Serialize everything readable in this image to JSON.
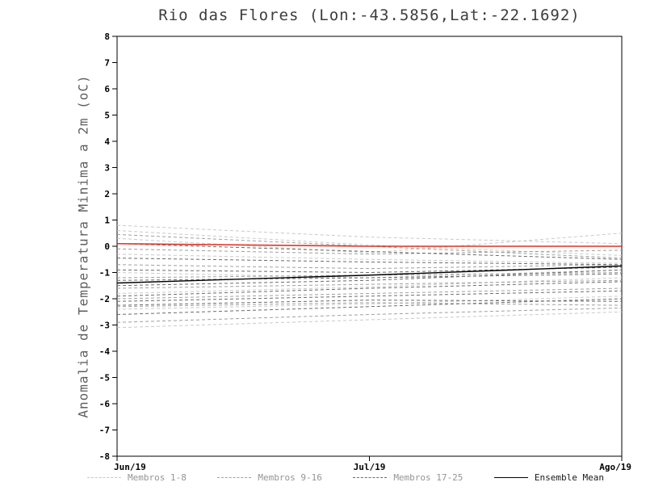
{
  "chart_data": {
    "type": "line",
    "title": "Rio das Flores (Lon:-43.5856,Lat:-22.1692)",
    "ylabel": "Anomalia de Temperatura Minima a 2m (oC)",
    "xlabel": "",
    "x_labels": [
      "Jun/19",
      "Jul/19",
      "Ago/19"
    ],
    "ylim": [
      -8,
      8
    ],
    "ytick_step": 1,
    "grid": false,
    "legend_position": "bottom",
    "colors": {
      "members_1_8": "#c9c9c9",
      "members_9_16": "#9f9f9f",
      "members_17_25": "#6b6b6b",
      "ensemble_mean": "#000000",
      "reference_zero": "#e03226"
    },
    "legend": [
      {
        "label": "Membros 1-8",
        "style": "dashed",
        "color_key": "members_1_8"
      },
      {
        "label": "Membros 9-16",
        "style": "dashed",
        "color_key": "members_9_16"
      },
      {
        "label": "Membros 17-25",
        "style": "dashed",
        "color_key": "members_17_25"
      },
      {
        "label": "Ensemble Mean",
        "style": "solid",
        "color_key": "ensemble_mean"
      }
    ],
    "reference_line": {
      "name": "zero-anomaly",
      "values": [
        0.1,
        0.0,
        0.0
      ]
    },
    "ensemble_mean": {
      "name": "ensemble-mean",
      "values": [
        -1.4,
        -1.1,
        -0.75
      ]
    },
    "members": [
      {
        "name": "m01",
        "group": "members_1_8",
        "values": [
          0.8,
          0.35,
          0.1
        ]
      },
      {
        "name": "m02",
        "group": "members_1_8",
        "values": [
          0.6,
          0.05,
          -0.35
        ]
      },
      {
        "name": "m03",
        "group": "members_1_8",
        "values": [
          0.3,
          -0.25,
          0.5
        ]
      },
      {
        "name": "m04",
        "group": "members_1_8",
        "values": [
          -0.3,
          -0.5,
          -0.65
        ]
      },
      {
        "name": "m05",
        "group": "members_1_8",
        "values": [
          -1.0,
          -1.2,
          -0.9
        ]
      },
      {
        "name": "m06",
        "group": "members_1_8",
        "values": [
          -1.8,
          -1.55,
          -1.2
        ]
      },
      {
        "name": "m07",
        "group": "members_1_8",
        "values": [
          -2.4,
          -2.2,
          -1.9
        ]
      },
      {
        "name": "m08",
        "group": "members_1_8",
        "values": [
          -3.1,
          -2.8,
          -2.5
        ]
      },
      {
        "name": "m09",
        "group": "members_9_16",
        "values": [
          0.45,
          0.0,
          -0.45
        ]
      },
      {
        "name": "m10",
        "group": "members_9_16",
        "values": [
          -0.1,
          -0.3,
          -0.15
        ]
      },
      {
        "name": "m11",
        "group": "members_9_16",
        "values": [
          -0.7,
          -0.85,
          -0.7
        ]
      },
      {
        "name": "m12",
        "group": "members_9_16",
        "values": [
          -1.2,
          -1.1,
          -1.0
        ]
      },
      {
        "name": "m13",
        "group": "members_9_16",
        "values": [
          -1.6,
          -1.45,
          -1.3
        ]
      },
      {
        "name": "m14",
        "group": "members_9_16",
        "values": [
          -2.0,
          -1.8,
          -1.6
        ]
      },
      {
        "name": "m15",
        "group": "members_9_16",
        "values": [
          -2.3,
          -2.15,
          -2.25
        ]
      },
      {
        "name": "m16",
        "group": "members_9_16",
        "values": [
          -2.9,
          -2.6,
          -2.35
        ]
      },
      {
        "name": "m17",
        "group": "members_17_25",
        "values": [
          0.1,
          -0.2,
          -0.5
        ]
      },
      {
        "name": "m18",
        "group": "members_17_25",
        "values": [
          -0.45,
          -0.6,
          -0.7
        ]
      },
      {
        "name": "m19",
        "group": "members_17_25",
        "values": [
          -0.9,
          -1.0,
          -0.8
        ]
      },
      {
        "name": "m20",
        "group": "members_17_25",
        "values": [
          -1.3,
          -1.2,
          -1.05
        ]
      },
      {
        "name": "m21",
        "group": "members_17_25",
        "values": [
          -1.5,
          -1.3,
          -0.9
        ]
      },
      {
        "name": "m22",
        "group": "members_17_25",
        "values": [
          -1.9,
          -1.6,
          -1.35
        ]
      },
      {
        "name": "m23",
        "group": "members_17_25",
        "values": [
          -2.1,
          -1.9,
          -1.7
        ]
      },
      {
        "name": "m24",
        "group": "members_17_25",
        "values": [
          -2.25,
          -2.05,
          -2.1
        ]
      },
      {
        "name": "m25",
        "group": "members_17_25",
        "values": [
          -2.6,
          -2.3,
          -2.0
        ]
      }
    ]
  }
}
